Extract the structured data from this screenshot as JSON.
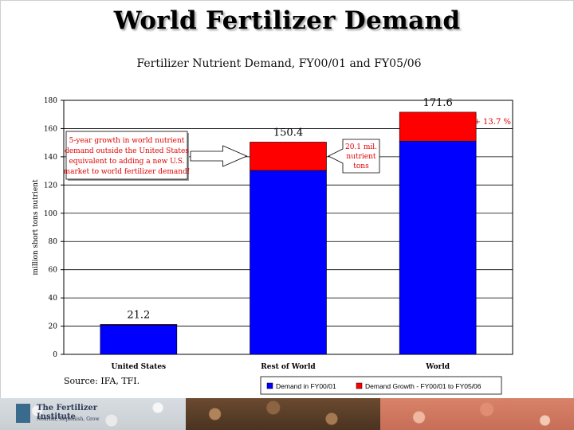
{
  "slide": {
    "title": "World Fertilizer Demand",
    "source": "Source: IFA, TFI.",
    "logo": {
      "name": "The Fertilizer Institute",
      "tagline": "Nourish, Replenish, Grow"
    }
  },
  "chart_data": {
    "type": "bar",
    "stacked": true,
    "title": "Fertilizer Nutrient Demand, FY00/01 and FY05/06",
    "xlabel": "",
    "ylabel": "million short tons nutrient",
    "ylim": [
      0,
      180
    ],
    "yticks": [
      0,
      20,
      40,
      60,
      80,
      100,
      120,
      140,
      160,
      180
    ],
    "grid": true,
    "legend_position": "bottom-right",
    "categories": [
      "United States",
      "Rest of World",
      "World"
    ],
    "series": [
      {
        "name": "Demand in FY00/01",
        "color": "#0000ff",
        "values": [
          20.8,
          130.3,
          151.1
        ]
      },
      {
        "name": "Demand Growth - FY00/01 to FY05/06",
        "color": "#ff0000",
        "values": [
          0.4,
          20.1,
          20.5
        ]
      }
    ],
    "totals": [
      "21.2",
      "150.4",
      "171.6"
    ],
    "annotations": {
      "callout_text": [
        "5-year growth in world nutrient",
        "demand outside the United States",
        "equivalent to adding a new U.S.",
        "market to world fertilizer demand!"
      ],
      "growth_label": [
        "20.1 mil.",
        "nutrient",
        "tons"
      ],
      "pct_label": "+ 13.7 %"
    }
  }
}
